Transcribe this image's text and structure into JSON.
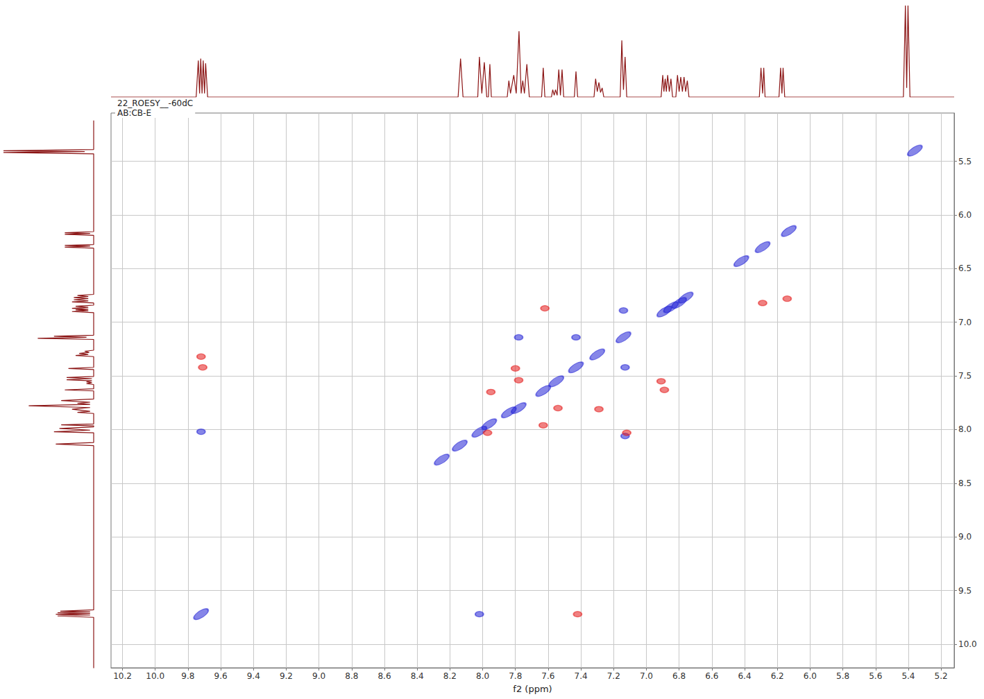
{
  "chart_data": {
    "type": "scatter",
    "title": "22_ROESY__-60dC",
    "subtitle": "AB:CB-E",
    "x_label": "f2 (ppm)",
    "xlim": [
      10.27,
      5.12
    ],
    "ylim": [
      5.05,
      10.22
    ],
    "xticks": [
      10.2,
      {
        "value": 10,
        "label": "10.0"
      },
      9.8,
      9.6,
      9.4,
      9.2,
      {
        "value": 9,
        "label": "9.0"
      },
      8.8,
      8.6,
      8.4,
      8.2,
      {
        "value": 8,
        "label": "8.0"
      },
      7.8,
      7.6,
      7.4,
      7.2,
      {
        "value": 7,
        "label": "7.0"
      },
      6.8,
      6.6,
      6.4,
      6.2,
      {
        "value": 6,
        "label": "6.0"
      },
      5.8,
      5.6,
      5.4,
      5.2
    ],
    "yticks": [
      5.5,
      {
        "value": 6,
        "label": "6.0"
      },
      6.5,
      {
        "value": 7,
        "label": "7.0"
      },
      7.5,
      {
        "value": 8,
        "label": "8.0"
      },
      8.5,
      {
        "value": 9,
        "label": "9.0"
      },
      9.5,
      {
        "value": 10,
        "label": "10.0"
      }
    ],
    "grid": true,
    "series": [
      {
        "color": "#2323d6",
        "x": [
          9.72,
          8.25,
          8.14,
          8.02,
          7.96,
          7.84,
          7.78,
          7.63,
          7.55,
          7.43,
          7.3,
          7.14,
          6.89,
          6.85,
          6.8,
          6.76,
          6.42,
          6.29,
          6.13,
          5.36,
          8.02,
          9.72,
          7.43,
          7.13,
          7.78,
          7.13,
          7.14
        ],
        "y": [
          9.72,
          8.28,
          8.15,
          8.02,
          7.95,
          7.84,
          7.8,
          7.64,
          7.55,
          7.42,
          7.3,
          7.14,
          6.9,
          6.86,
          6.82,
          6.77,
          6.43,
          6.3,
          6.15,
          5.4,
          9.72,
          8.02,
          7.14,
          7.42,
          7.14,
          8.06,
          6.89
        ]
      },
      {
        "color": "#e41a1a",
        "x": [
          7.95,
          7.78,
          7.54,
          7.63,
          7.97,
          6.91,
          6.89,
          6.29,
          6.14,
          7.42,
          9.72,
          9.71,
          7.12,
          7.29,
          7.62,
          7.8
        ],
        "y": [
          7.65,
          7.54,
          7.8,
          7.96,
          8.03,
          7.55,
          7.63,
          6.82,
          6.78,
          9.72,
          7.32,
          7.42,
          8.03,
          7.81,
          6.87,
          7.43
        ]
      }
    ],
    "projection": {
      "type": "line",
      "color": "#8b1414",
      "x": [
        10.27,
        9.75,
        9.737,
        9.729,
        9.722,
        9.714,
        9.707,
        9.699,
        9.692,
        9.68,
        8.15,
        8.135,
        8.12,
        8.03,
        8.02,
        8.005,
        7.99,
        7.975,
        7.965,
        7.956,
        7.947,
        7.85,
        7.84,
        7.83,
        7.81,
        7.795,
        7.778,
        7.765,
        7.755,
        7.745,
        7.73,
        7.715,
        7.64,
        7.63,
        7.62,
        7.58,
        7.572,
        7.563,
        7.555,
        7.545,
        7.535,
        7.525,
        7.515,
        7.505,
        7.44,
        7.43,
        7.42,
        7.32,
        7.31,
        7.3,
        7.29,
        7.28,
        7.27,
        7.26,
        7.16,
        7.15,
        7.14,
        7.13,
        7.12,
        6.91,
        6.9,
        6.893,
        6.885,
        6.878,
        6.87,
        6.86,
        6.85,
        6.84,
        6.82,
        6.81,
        6.8,
        6.79,
        6.78,
        6.77,
        6.76,
        6.75,
        6.74,
        6.31,
        6.3,
        6.29,
        6.283,
        6.275,
        6.19,
        6.18,
        6.172,
        6.165,
        6.155,
        5.43,
        5.418,
        5.41,
        5.402,
        5.39,
        5.12
      ],
      "values": [
        0,
        0,
        40,
        4,
        42,
        4,
        40,
        4,
        37,
        0,
        0,
        42,
        0,
        0,
        44,
        4,
        38,
        0,
        0,
        36,
        0,
        0,
        18,
        4,
        24,
        4,
        72,
        4,
        18,
        4,
        36,
        0,
        0,
        32,
        0,
        0,
        8,
        2,
        8,
        2,
        30,
        2,
        30,
        0,
        0,
        28,
        0,
        0,
        20,
        6,
        16,
        5,
        10,
        0,
        0,
        62,
        8,
        44,
        0,
        0,
        24,
        6,
        20,
        6,
        24,
        6,
        20,
        0,
        0,
        24,
        6,
        22,
        6,
        22,
        6,
        18,
        0,
        0,
        32,
        4,
        32,
        0,
        0,
        32,
        4,
        32,
        0,
        0,
        100,
        10,
        100,
        0,
        0
      ]
    }
  }
}
